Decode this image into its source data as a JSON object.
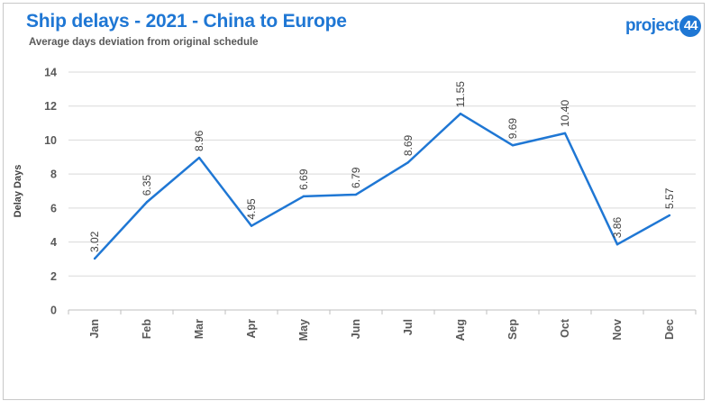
{
  "header": {
    "title": "Ship delays - 2021 - China to Europe",
    "subtitle": "Average days deviation from original schedule"
  },
  "logo": {
    "text": "project",
    "badge": "44",
    "color": "#1f77d4"
  },
  "chart_data": {
    "type": "line",
    "categories": [
      "Jan",
      "Feb",
      "Mar",
      "Apr",
      "May",
      "Jun",
      "Jul",
      "Aug",
      "Sep",
      "Oct",
      "Nov",
      "Dec"
    ],
    "series": [
      {
        "values": [
          3.02,
          6.35,
          8.96,
          4.95,
          6.69,
          6.79,
          8.69,
          11.55,
          9.69,
          10.4,
          3.86,
          5.57
        ],
        "labels": [
          "3.02",
          "6.35",
          "8.96",
          "4.95",
          "6.69",
          "6.79",
          "8.69",
          "11.55",
          "9.69",
          "10.40",
          "3.86",
          "5.57"
        ],
        "color": "#1f77d4"
      }
    ],
    "title": "Ship delays - 2021 - China to Europe",
    "subtitle": "Average days deviation from original schedule",
    "xlabel": "",
    "ylabel": "Delay Days",
    "ylim": [
      0,
      14
    ],
    "yticks": [
      0,
      2,
      4,
      6,
      8,
      10,
      12,
      14
    ],
    "grid": true,
    "legend": "none"
  }
}
